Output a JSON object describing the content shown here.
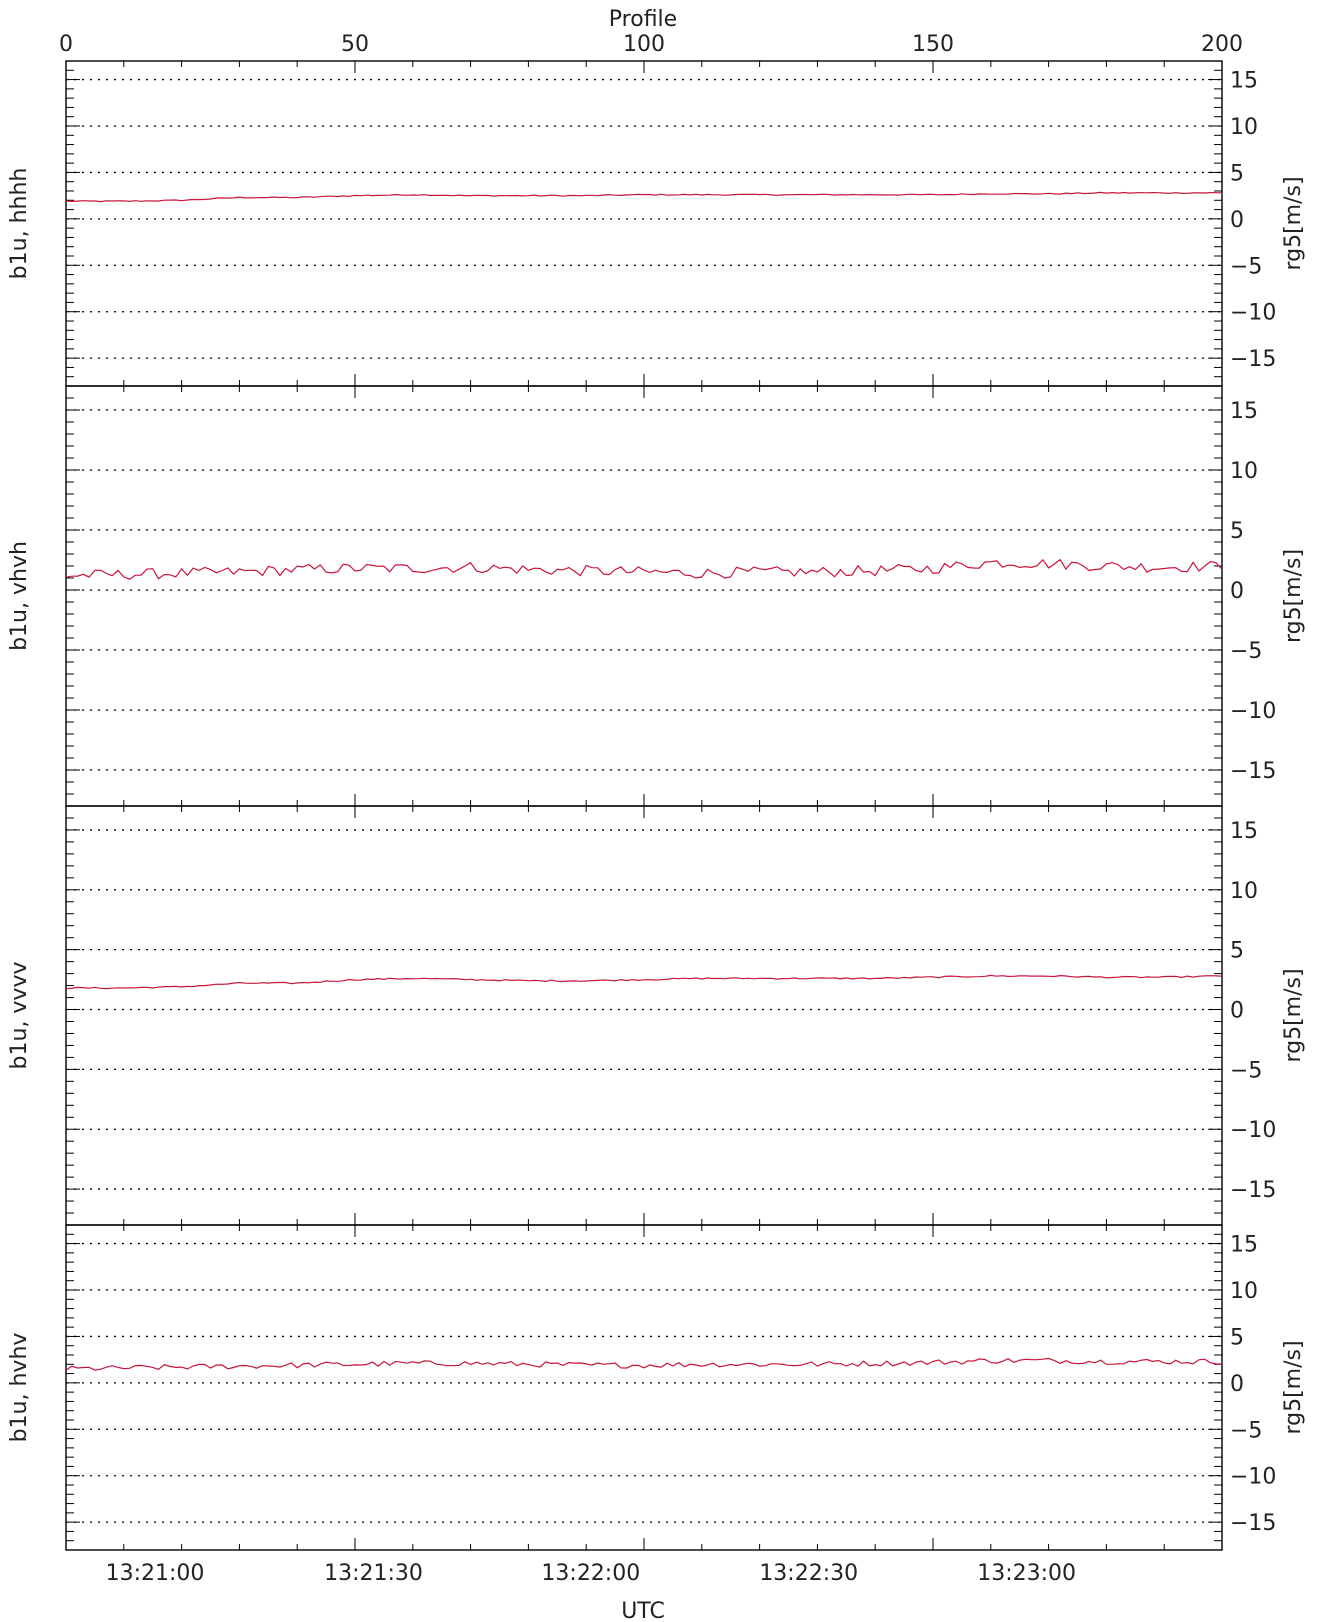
{
  "chart_data": {
    "type": "line",
    "top_axis": {
      "title": "Profile",
      "range": [
        0,
        200
      ],
      "ticks": [
        0,
        50,
        100,
        150,
        200
      ],
      "tick_labels": [
        "0",
        "50",
        "100",
        "150",
        "200"
      ]
    },
    "bottom_axis": {
      "title": "UTC",
      "ticks": [
        15.4,
        53.2,
        90.8,
        128.5,
        166.2
      ],
      "tick_labels": [
        "13:21:00",
        "13:21:30",
        "13:22:00",
        "13:22:30",
        "13:23:00"
      ]
    },
    "y_axis": {
      "label": "rg5[m/s]",
      "range": [
        -18,
        17
      ],
      "ticks": [
        -15,
        -10,
        -5,
        0,
        5,
        10,
        15
      ],
      "tick_labels": [
        "−15",
        "−10",
        "−5",
        "0",
        "5",
        "10",
        "15"
      ],
      "grid": "dotted"
    },
    "line_color": "#c8143c",
    "panels": [
      {
        "label": "b1u, hhhh",
        "base": [
          1.9,
          1.9,
          2.0,
          2.3,
          2.3,
          2.5,
          2.6,
          2.5,
          2.5,
          2.5,
          2.6,
          2.6,
          2.6,
          2.6,
          2.6,
          2.6,
          2.7,
          2.7,
          2.8,
          2.8,
          2.8
        ],
        "noise": 0.06
      },
      {
        "label": "b1u, vhvh",
        "base": [
          1.2,
          1.3,
          1.4,
          1.5,
          1.7,
          1.8,
          1.8,
          1.9,
          1.7,
          1.6,
          1.5,
          1.4,
          1.5,
          1.5,
          1.6,
          1.8,
          2.3,
          2.2,
          2.0,
          1.9,
          2.0
        ],
        "noise": 0.45
      },
      {
        "label": "b1u, vvvv",
        "base": [
          1.8,
          1.8,
          1.9,
          2.2,
          2.2,
          2.5,
          2.6,
          2.5,
          2.4,
          2.4,
          2.5,
          2.6,
          2.6,
          2.6,
          2.6,
          2.7,
          2.8,
          2.8,
          2.7,
          2.7,
          2.8
        ],
        "noise": 0.06
      },
      {
        "label": "b1u, hvhv",
        "base": [
          1.5,
          1.6,
          1.7,
          1.8,
          1.9,
          2.0,
          2.1,
          2.1,
          2.0,
          1.9,
          1.9,
          2.0,
          2.0,
          2.0,
          2.1,
          2.2,
          2.4,
          2.4,
          2.3,
          2.3,
          2.3
        ],
        "noise": 0.3
      }
    ]
  }
}
